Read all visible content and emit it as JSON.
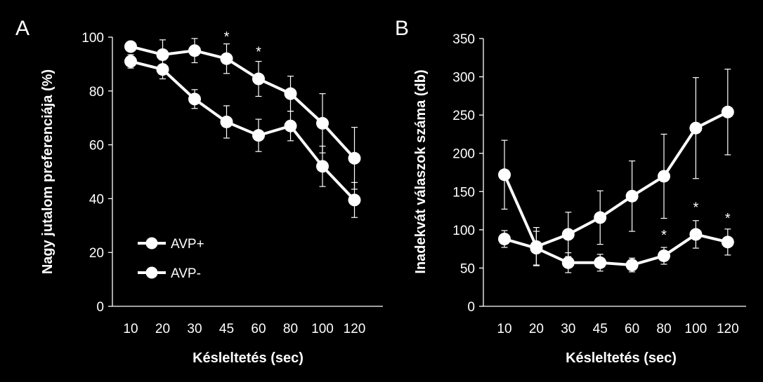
{
  "chart_data": [
    {
      "type": "line",
      "panel_label": "A",
      "categories": [
        "10",
        "20",
        "30",
        "45",
        "60",
        "80",
        "100",
        "120"
      ],
      "xlabel": "Késleltetés (sec)",
      "ylabel": "Nagy jutalom preferenciája (%)",
      "ylim": [
        0,
        100
      ],
      "yticks": [
        0,
        20,
        40,
        60,
        80,
        100
      ],
      "grid": false,
      "legend": {
        "position": "bottom-left",
        "entries": [
          "AVP+",
          "AVP-"
        ]
      },
      "series": [
        {
          "name": "AVP+",
          "values": [
            96.5,
            93.5,
            95,
            92,
            84.5,
            79,
            68,
            55
          ],
          "errors": [
            1.5,
            5.5,
            4.5,
            5.5,
            6.5,
            6.5,
            11,
            11.5
          ]
        },
        {
          "name": "AVP-",
          "values": [
            91,
            88,
            77,
            68.5,
            63.5,
            67,
            52,
            39.5
          ],
          "errors": [
            2.5,
            3.5,
            3.5,
            6,
            6,
            5.5,
            7.5,
            6.5
          ]
        }
      ],
      "annotations": [
        {
          "category": "45",
          "text": "*",
          "y": 101.5
        },
        {
          "category": "60",
          "text": "*",
          "y": 96
        }
      ]
    },
    {
      "type": "line",
      "panel_label": "B",
      "categories": [
        "10",
        "20",
        "30",
        "45",
        "60",
        "80",
        "100",
        "120"
      ],
      "xlabel": "Késleltetés (sec)",
      "ylabel": "Inadekvát válaszok száma (db)",
      "ylim": [
        0,
        350
      ],
      "yticks": [
        0,
        50,
        100,
        150,
        200,
        250,
        300,
        350
      ],
      "grid": false,
      "series": [
        {
          "name": "AVP-",
          "values": [
            172,
            78,
            94,
            116,
            144,
            170,
            233,
            254
          ],
          "errors": [
            45,
            25,
            29,
            35,
            46,
            55,
            66,
            56
          ]
        },
        {
          "name": "AVP+",
          "values": [
            88,
            76,
            57,
            57,
            54,
            66,
            94,
            84
          ],
          "errors": [
            11,
            22,
            13,
            11,
            9,
            11,
            18,
            17
          ]
        }
      ],
      "annotations": [
        {
          "category": "80",
          "text": "*",
          "y": 98
        },
        {
          "category": "100",
          "text": "*",
          "y": 134
        },
        {
          "category": "120",
          "text": "*",
          "y": 120
        }
      ]
    }
  ]
}
